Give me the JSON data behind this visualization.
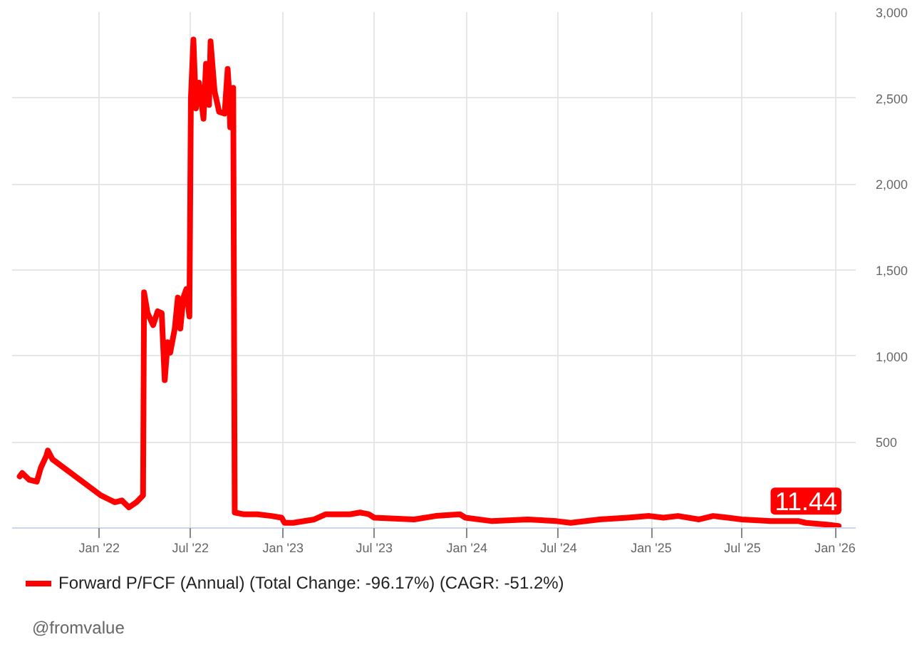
{
  "chart_data": {
    "type": "line",
    "x": [
      "2021-07-27",
      "2021-08-01",
      "2021-08-15",
      "2021-08-30",
      "2021-09-07",
      "2021-09-18",
      "2021-09-21",
      "2021-09-30",
      "2022-01-04",
      "2022-01-18",
      "2022-02-01",
      "2022-02-15",
      "2022-03-01",
      "2022-03-16",
      "2022-03-29",
      "2022-03-31",
      "2022-04-07",
      "2022-04-18",
      "2022-04-27",
      "2022-05-05",
      "2022-05-11",
      "2022-05-17",
      "2022-05-22",
      "2022-05-31",
      "2022-06-06",
      "2022-06-11",
      "2022-06-17",
      "2022-06-23",
      "2022-06-29",
      "2022-07-02",
      "2022-07-07",
      "2022-07-12",
      "2022-07-18",
      "2022-07-27",
      "2022-08-01",
      "2022-08-07",
      "2022-08-10",
      "2022-08-18",
      "2022-08-27",
      "2022-09-07",
      "2022-09-13",
      "2022-09-15",
      "2022-09-18",
      "2022-09-24",
      "2022-09-27",
      "2022-10-14",
      "2022-11-11",
      "2022-12-09",
      "2022-12-29",
      "2023-01-04",
      "2023-01-21",
      "2023-03-04",
      "2023-03-27",
      "2023-05-14",
      "2023-06-03",
      "2023-06-20",
      "2023-07-01",
      "2023-09-18",
      "2023-10-31",
      "2023-12-18",
      "2023-12-29",
      "2024-02-20",
      "2024-05-01",
      "2024-06-27",
      "2024-07-25",
      "2024-09-20",
      "2024-11-15",
      "2024-12-28",
      "2025-01-25",
      "2025-02-23",
      "2025-04-06",
      "2025-05-04",
      "2025-06-02",
      "2025-06-30",
      "2025-08-26",
      "2025-10-21",
      "2025-11-04",
      "2025-12-16",
      "2026-01-08"
    ],
    "series": [
      {
        "name": "Forward P/FCF (Annual) (Total Change: -96.17%) (CAGR: -51.2%)",
        "color": "#ff0000",
        "values": [
          300,
          320,
          280,
          270,
          350,
          420,
          450,
          400,
          190,
          170,
          150,
          160,
          120,
          150,
          190,
          1370,
          1250,
          1180,
          1260,
          1250,
          860,
          1080,
          1020,
          1160,
          1340,
          1160,
          1340,
          1390,
          1230,
          2500,
          2840,
          2440,
          2590,
          2380,
          2700,
          2460,
          2830,
          2540,
          2420,
          2410,
          2670,
          2580,
          2330,
          2560,
          90,
          80,
          80,
          70,
          60,
          30,
          30,
          50,
          80,
          80,
          90,
          80,
          60,
          50,
          70,
          80,
          60,
          40,
          50,
          40,
          30,
          50,
          60,
          70,
          60,
          70,
          50,
          70,
          60,
          50,
          40,
          40,
          30,
          20,
          11.44
        ],
        "value_labels": [
          null,
          null,
          null,
          null,
          null,
          null,
          null,
          null,
          null,
          null,
          null,
          null,
          null,
          null,
          null,
          null,
          null,
          null,
          null,
          null,
          null,
          null,
          null,
          null,
          null,
          null,
          null,
          null,
          null,
          null,
          null,
          null,
          null,
          null,
          null,
          null,
          null,
          null,
          null,
          null,
          null,
          null,
          null,
          null,
          null,
          null,
          null,
          null,
          null,
          null,
          null,
          null,
          null,
          null,
          null,
          null,
          null,
          null,
          null,
          null,
          null,
          null,
          null,
          null,
          null,
          null,
          null,
          null,
          null,
          null,
          null,
          null,
          null,
          null,
          null,
          null,
          null,
          null,
          "11.44"
        ]
      }
    ],
    "xlim": [
      "2021-07-12",
      "2026-02-11"
    ],
    "xticks": [
      {
        "value": "2022-01-01",
        "label": "Jan '22"
      },
      {
        "value": "2022-07-01",
        "label": "Jul '22"
      },
      {
        "value": "2023-01-01",
        "label": "Jan '23"
      },
      {
        "value": "2023-07-01",
        "label": "Jul '23"
      },
      {
        "value": "2024-01-01",
        "label": "Jan '24"
      },
      {
        "value": "2024-07-01",
        "label": "Jul '24"
      },
      {
        "value": "2025-01-01",
        "label": "Jan '25"
      },
      {
        "value": "2025-07-01",
        "label": "Jul '25"
      },
      {
        "value": "2026-01-01",
        "label": "Jan '26"
      }
    ],
    "ylim": [
      0,
      3000
    ],
    "yticks": [
      500,
      {
        "value": 1000,
        "label": "1,000"
      },
      {
        "value": 1500,
        "label": "1,500"
      },
      {
        "value": 2000,
        "label": "2,000"
      },
      {
        "value": 2500,
        "label": "2,500"
      },
      {
        "value": 3000,
        "label": "3,000"
      }
    ],
    "grid": true,
    "legend": "bottom",
    "line_style": "solid",
    "annotations": [
      "@fromvalue"
    ]
  }
}
